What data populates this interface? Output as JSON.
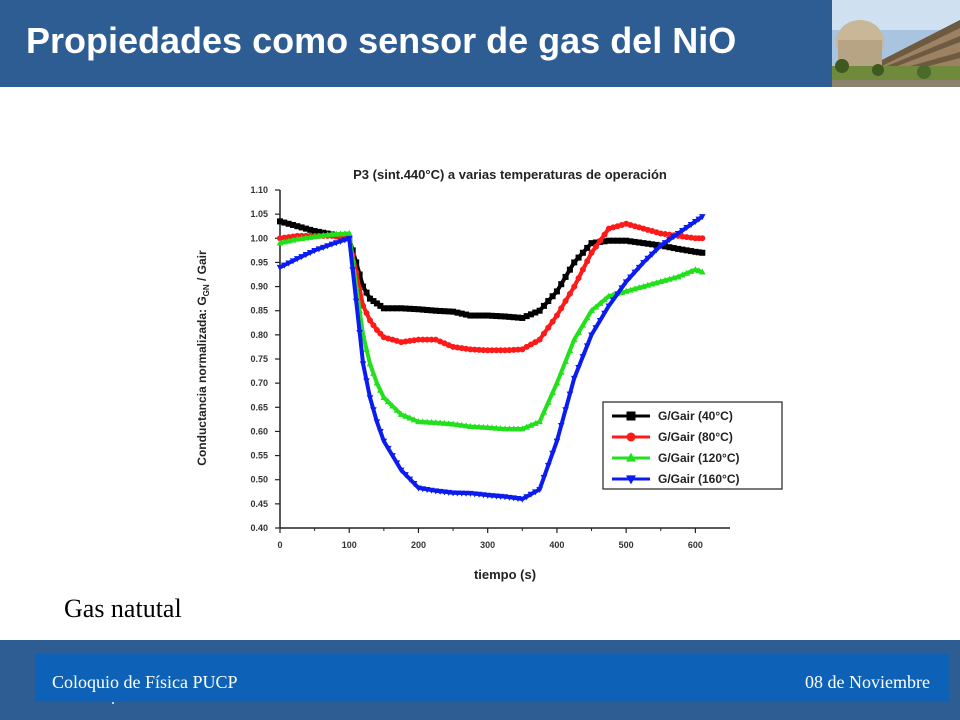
{
  "slide": {
    "title": "Propiedades como sensor de gas del NiO",
    "caption": "Gas natutal",
    "footer_left": "Coloquio de Física PUCP",
    "footer_right": "08 de Noviembre"
  },
  "colors": {
    "header_bg": "#2e5d93",
    "footer_bar": "#0d62b7",
    "series_black": "#000000",
    "series_red": "#ff1a1a",
    "series_green": "#22e01b",
    "series_blue": "#0b1cf0"
  },
  "chart_data": {
    "type": "line",
    "title": "P3 (sint.440°C) a varias temperaturas de operación",
    "xlabel": "tiempo (s)",
    "ylabel_main": "Conductancia normalizada: G",
    "ylabel_sub": "GN",
    "ylabel_tail": " / Gair",
    "xlim": [
      0,
      650
    ],
    "ylim": [
      0.4,
      1.1
    ],
    "xticks": [
      "0",
      "100",
      "200",
      "300",
      "400",
      "500",
      "600"
    ],
    "yticks": [
      "0.40",
      "0.45",
      "0.50",
      "0.55",
      "0.60",
      "0.65",
      "0.70",
      "0.75",
      "0.80",
      "0.85",
      "0.90",
      "0.95",
      "1.00",
      "1.05",
      "1.10"
    ],
    "legend_position": "right",
    "series": [
      {
        "name": "G/Gair (40°C)",
        "color": "#000000",
        "marker": "square",
        "x": [
          0,
          25,
          50,
          75,
          100,
          110,
          120,
          130,
          140,
          150,
          175,
          200,
          225,
          250,
          275,
          300,
          325,
          350,
          375,
          400,
          425,
          450,
          475,
          500,
          525,
          550,
          575,
          600,
          610
        ],
        "y": [
          1.035,
          1.025,
          1.015,
          1.008,
          1.0,
          0.95,
          0.9,
          0.875,
          0.865,
          0.855,
          0.855,
          0.853,
          0.85,
          0.848,
          0.84,
          0.84,
          0.838,
          0.835,
          0.85,
          0.89,
          0.95,
          0.99,
          0.995,
          0.995,
          0.99,
          0.985,
          0.978,
          0.972,
          0.97
        ]
      },
      {
        "name": "G/Gair (80°C)",
        "color": "#ff1a1a",
        "marker": "circle",
        "x": [
          0,
          25,
          50,
          75,
          100,
          110,
          120,
          130,
          140,
          150,
          175,
          200,
          225,
          250,
          275,
          300,
          325,
          350,
          375,
          400,
          425,
          450,
          475,
          500,
          525,
          550,
          575,
          600,
          610
        ],
        "y": [
          1.0,
          1.005,
          1.005,
          1.005,
          1.0,
          0.93,
          0.86,
          0.83,
          0.81,
          0.795,
          0.785,
          0.79,
          0.79,
          0.775,
          0.77,
          0.768,
          0.768,
          0.77,
          0.79,
          0.84,
          0.9,
          0.97,
          1.02,
          1.03,
          1.02,
          1.01,
          1.005,
          1.0,
          1.0
        ]
      },
      {
        "name": "G/Gair (120°C)",
        "color": "#22e01b",
        "marker": "triangle-up",
        "x": [
          0,
          25,
          50,
          75,
          100,
          110,
          120,
          130,
          140,
          150,
          175,
          200,
          225,
          250,
          275,
          300,
          325,
          350,
          375,
          400,
          425,
          450,
          475,
          500,
          525,
          550,
          575,
          600,
          610
        ],
        "y": [
          0.99,
          0.998,
          1.003,
          1.008,
          1.01,
          0.9,
          0.8,
          0.74,
          0.7,
          0.67,
          0.635,
          0.62,
          0.618,
          0.615,
          0.61,
          0.608,
          0.605,
          0.605,
          0.62,
          0.7,
          0.79,
          0.85,
          0.88,
          0.89,
          0.9,
          0.91,
          0.92,
          0.935,
          0.93
        ]
      },
      {
        "name": "G/Gair (160°C)",
        "color": "#0b1cf0",
        "marker": "triangle-down",
        "x": [
          0,
          25,
          50,
          75,
          100,
          110,
          120,
          130,
          140,
          150,
          175,
          200,
          225,
          250,
          275,
          300,
          325,
          350,
          375,
          400,
          425,
          450,
          475,
          500,
          525,
          550,
          575,
          600,
          610
        ],
        "y": [
          0.94,
          0.958,
          0.975,
          0.988,
          1.0,
          0.87,
          0.74,
          0.67,
          0.62,
          0.58,
          0.52,
          0.483,
          0.477,
          0.473,
          0.472,
          0.468,
          0.465,
          0.46,
          0.48,
          0.58,
          0.71,
          0.8,
          0.86,
          0.91,
          0.95,
          0.985,
          1.01,
          1.035,
          1.045
        ]
      }
    ]
  }
}
